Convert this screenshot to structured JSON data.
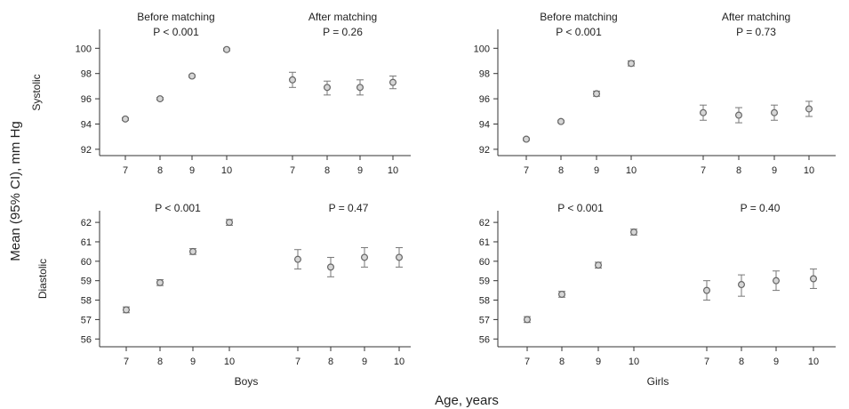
{
  "figure": {
    "ylabel": "Mean (95% CI), mm Hg",
    "xlabel": "Age, years"
  },
  "chart_data": [
    {
      "type": "scatter",
      "panel": "boys-systolic",
      "row_label": "Systolic",
      "group_label": "",
      "ylim": [
        91.5,
        101.5
      ],
      "yticks": [
        92,
        94,
        96,
        98,
        100
      ],
      "annotations": [
        {
          "title": "Before matching",
          "p": "P < 0.001"
        },
        {
          "title": "After matching",
          "p": "P = 0.26"
        }
      ],
      "series": [
        {
          "x": [
            "7",
            "8",
            "9",
            "10"
          ],
          "values": [
            94.4,
            96.0,
            97.8,
            99.9
          ],
          "lower": [
            94.3,
            95.9,
            97.7,
            99.8
          ],
          "upper": [
            94.5,
            96.1,
            97.9,
            100.0
          ]
        },
        {
          "x": [
            "7",
            "8",
            "9",
            "10"
          ],
          "values": [
            97.5,
            96.9,
            96.9,
            97.3
          ],
          "lower": [
            96.9,
            96.3,
            96.3,
            96.8
          ],
          "upper": [
            98.1,
            97.4,
            97.5,
            97.8
          ]
        }
      ]
    },
    {
      "type": "scatter",
      "panel": "girls-systolic",
      "row_label": "",
      "group_label": "",
      "ylim": [
        91.5,
        101.5
      ],
      "yticks": [
        92,
        94,
        96,
        98,
        100
      ],
      "annotations": [
        {
          "title": "Before matching",
          "p": "P < 0.001"
        },
        {
          "title": "After matching",
          "p": "P = 0.73"
        }
      ],
      "series": [
        {
          "x": [
            "7",
            "8",
            "9",
            "10"
          ],
          "values": [
            92.8,
            94.2,
            96.4,
            98.8
          ],
          "lower": [
            92.7,
            94.1,
            96.2,
            98.6
          ],
          "upper": [
            92.9,
            94.3,
            96.6,
            99.0
          ]
        },
        {
          "x": [
            "7",
            "8",
            "9",
            "10"
          ],
          "values": [
            94.9,
            94.7,
            94.9,
            95.2
          ],
          "lower": [
            94.3,
            94.1,
            94.3,
            94.6
          ],
          "upper": [
            95.5,
            95.3,
            95.5,
            95.8
          ]
        }
      ]
    },
    {
      "type": "scatter",
      "panel": "boys-diastolic",
      "row_label": "Diastolic",
      "group_label": "Boys",
      "ylim": [
        55.6,
        62.6
      ],
      "yticks": [
        56,
        57,
        58,
        59,
        60,
        61,
        62
      ],
      "annotations": [
        {
          "title": "",
          "p": "P < 0.001"
        },
        {
          "title": "",
          "p": "P = 0.47"
        }
      ],
      "series": [
        {
          "x": [
            "7",
            "8",
            "9",
            "10"
          ],
          "values": [
            57.5,
            58.9,
            60.5,
            62.0
          ],
          "lower": [
            57.35,
            58.75,
            60.35,
            61.85
          ],
          "upper": [
            57.65,
            59.05,
            60.65,
            62.15
          ]
        },
        {
          "x": [
            "7",
            "8",
            "9",
            "10"
          ],
          "values": [
            60.1,
            59.7,
            60.2,
            60.2
          ],
          "lower": [
            59.6,
            59.2,
            59.7,
            59.7
          ],
          "upper": [
            60.6,
            60.2,
            60.7,
            60.7
          ]
        }
      ]
    },
    {
      "type": "scatter",
      "panel": "girls-diastolic",
      "row_label": "",
      "group_label": "Girls",
      "ylim": [
        55.6,
        62.6
      ],
      "yticks": [
        56,
        57,
        58,
        59,
        60,
        61,
        62
      ],
      "annotations": [
        {
          "title": "",
          "p": "P < 0.001"
        },
        {
          "title": "",
          "p": "P = 0.40"
        }
      ],
      "series": [
        {
          "x": [
            "7",
            "8",
            "9",
            "10"
          ],
          "values": [
            57.0,
            58.3,
            59.8,
            61.5
          ],
          "lower": [
            56.85,
            58.15,
            59.65,
            61.35
          ],
          "upper": [
            57.15,
            58.45,
            59.95,
            61.65
          ]
        },
        {
          "x": [
            "7",
            "8",
            "9",
            "10"
          ],
          "values": [
            58.5,
            58.8,
            59.0,
            59.1
          ],
          "lower": [
            58.0,
            58.2,
            58.5,
            58.6
          ],
          "upper": [
            59.0,
            59.3,
            59.5,
            59.6
          ]
        }
      ]
    }
  ]
}
